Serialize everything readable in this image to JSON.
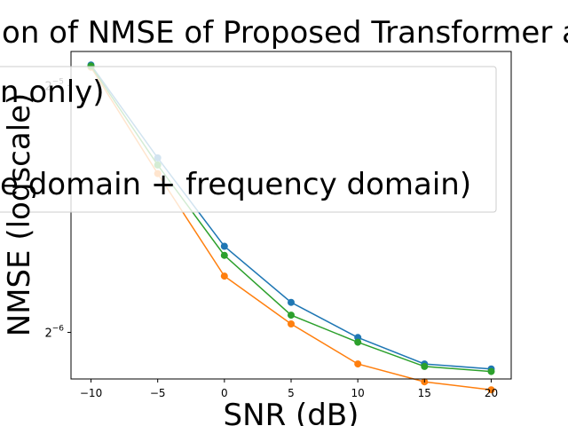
{
  "chart_data": {
    "type": "line",
    "title": "on of NMSE of Proposed Transformer a",
    "xlabel": "SNR (dB)",
    "ylabel": "NMSE (logscale)",
    "x": [
      -10,
      -5,
      0,
      5,
      10,
      15,
      20
    ],
    "x_tick_labels": [
      "−10",
      "−5",
      "0",
      "5",
      "10",
      "15",
      "20"
    ],
    "xlim": [
      -11.5,
      21.5
    ],
    "y_scale": "log2",
    "ylim": [
      0.01371,
      0.03438
    ],
    "y_ticks": [
      {
        "value": 0.03125,
        "base": "2",
        "exp": "−5"
      },
      {
        "value": 0.015625,
        "base": "2",
        "exp": "−6"
      }
    ],
    "grid": false,
    "legend": {
      "placement": "upper center (clipped)",
      "entries": [
        {
          "label": "n only)"
        },
        {
          "label": ""
        },
        {
          "label": "e domain + frequency domain)"
        }
      ]
    },
    "series": [
      {
        "color": "#1f77b4",
        "values": [
          0.0331,
          0.0255,
          0.0199,
          0.017,
          0.0154,
          0.0143,
          0.0141
        ]
      },
      {
        "color": "#ff7f0e",
        "values": [
          0.0329,
          0.0244,
          0.0183,
          0.016,
          0.0143,
          0.0136,
          0.0133
        ]
      },
      {
        "color": "#2ca02c",
        "values": [
          0.033,
          0.025,
          0.0194,
          0.0164,
          0.0152,
          0.0142,
          0.014
        ]
      }
    ]
  }
}
